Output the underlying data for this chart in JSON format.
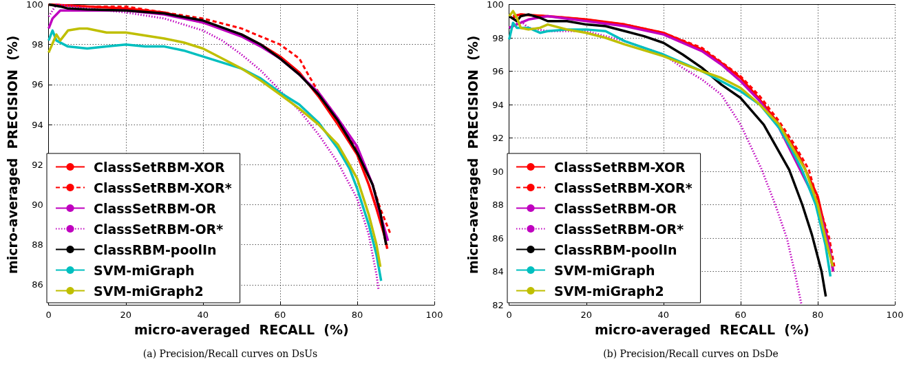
{
  "chart_data": [
    {
      "type": "line",
      "xlabel": "micro-averaged  RECALL  (%)",
      "ylabel": "micro-averaged  PRECISION  (%)",
      "annotations": [
        "(a) Precision/Recall curves on DsUs"
      ],
      "xlim": [
        0,
        100
      ],
      "xticks": [
        0,
        20,
        40,
        60,
        80,
        100
      ],
      "ylim": [
        85,
        100
      ],
      "yticks": [
        86,
        88,
        90,
        92,
        94,
        96,
        98,
        100
      ],
      "grid": true,
      "legend": "bottom left",
      "marker": "none",
      "line_style": "solid",
      "series": [
        {
          "name": "ClassSetRBM-XOR",
          "color": "#ff0000",
          "x": [
            0,
            10,
            20,
            30,
            40,
            50,
            55,
            60,
            65,
            70,
            75,
            80,
            83,
            85,
            87,
            87.8
          ],
          "values": [
            100,
            99.9,
            99.8,
            99.6,
            99.1,
            98.5,
            98.0,
            97.4,
            96.6,
            95.4,
            94.0,
            92.5,
            91.0,
            89.8,
            88.5,
            87.8
          ]
        },
        {
          "name": "ClassSetRBM-XOR*",
          "color": "#ff0000",
          "line_style": "dashed",
          "x": [
            0,
            10,
            20,
            30,
            40,
            50,
            55,
            60,
            65,
            67,
            70,
            75,
            80,
            84,
            86,
            88.5
          ],
          "values": [
            100,
            99.9,
            99.9,
            99.6,
            99.3,
            98.8,
            98.4,
            98.0,
            97.3,
            96.6,
            95.6,
            94.3,
            92.8,
            91.0,
            89.8,
            88.6
          ]
        },
        {
          "name": "ClassSetRBM-OR",
          "color": "#bf00bf",
          "x": [
            0,
            1,
            3,
            10,
            20,
            30,
            40,
            50,
            55,
            60,
            65,
            70,
            75,
            80,
            84,
            86,
            88
          ],
          "values": [
            98.8,
            99.3,
            99.7,
            99.7,
            99.7,
            99.5,
            99.1,
            98.4,
            97.9,
            97.3,
            96.5,
            95.6,
            94.3,
            92.9,
            91.0,
            89.5,
            88.2
          ]
        },
        {
          "name": "ClassSetRBM-OR*",
          "color": "#bf00bf",
          "line_style": "dotted",
          "x": [
            0,
            2,
            10,
            20,
            30,
            35,
            40,
            45,
            50,
            55,
            60,
            65,
            70,
            75,
            80,
            83,
            85,
            85.5
          ],
          "values": [
            99.4,
            100,
            99.8,
            99.6,
            99.3,
            99.0,
            98.7,
            98.2,
            97.5,
            96.7,
            95.7,
            94.7,
            93.5,
            92.1,
            90.3,
            88.5,
            86.5,
            85.8
          ]
        },
        {
          "name": "ClassRBM-poolIn",
          "color": "#000000",
          "x": [
            0,
            3,
            5,
            10,
            20,
            30,
            40,
            50,
            55,
            60,
            65,
            70,
            75,
            80,
            84,
            86,
            87.5
          ],
          "values": [
            100,
            99.9,
            99.8,
            99.75,
            99.7,
            99.55,
            99.2,
            98.5,
            98.0,
            97.3,
            96.5,
            95.5,
            94.2,
            92.6,
            91.0,
            89.6,
            88.0
          ]
        },
        {
          "name": "SVM-miGraph",
          "color": "#00bfbf",
          "x": [
            0,
            1,
            2,
            5,
            10,
            15,
            20,
            25,
            30,
            35,
            40,
            45,
            50,
            55,
            60,
            65,
            70,
            75,
            78,
            80,
            83,
            85,
            86.2
          ],
          "values": [
            98.2,
            98.7,
            98.2,
            97.9,
            97.8,
            97.9,
            98.0,
            97.9,
            97.9,
            97.7,
            97.4,
            97.1,
            96.8,
            96.3,
            95.6,
            95.0,
            94.1,
            92.8,
            91.8,
            90.8,
            89.0,
            87.5,
            86.2
          ]
        },
        {
          "name": "SVM-miGraph2",
          "color": "#bfbf00",
          "x": [
            0,
            2,
            3,
            5,
            8,
            10,
            15,
            20,
            30,
            35,
            40,
            45,
            50,
            55,
            60,
            65,
            70,
            75,
            78,
            80,
            83,
            85,
            86
          ],
          "values": [
            97.6,
            98.5,
            98.2,
            98.7,
            98.8,
            98.8,
            98.6,
            98.6,
            98.3,
            98.1,
            97.8,
            97.3,
            96.8,
            96.2,
            95.5,
            94.8,
            94.0,
            93.0,
            92.0,
            91.3,
            89.5,
            88.0,
            86.9
          ]
        }
      ]
    },
    {
      "type": "line",
      "xlabel": "micro-averaged  RECALL  (%)",
      "ylabel": "micro-averaged  PRECISION  (%)",
      "annotations": [
        "(b) Precision/Recall curves on DsDe"
      ],
      "xlim": [
        0,
        100
      ],
      "xticks": [
        0,
        20,
        40,
        60,
        80,
        100
      ],
      "ylim": [
        82,
        100
      ],
      "yticks": [
        82,
        84,
        86,
        88,
        90,
        92,
        94,
        96,
        98,
        100
      ],
      "grid": true,
      "legend": "bottom left",
      "marker": "none",
      "line_style": "solid",
      "series": [
        {
          "name": "ClassSetRBM-XOR",
          "color": "#ff0000",
          "x": [
            1,
            3,
            10,
            20,
            30,
            40,
            50,
            55,
            60,
            65,
            70,
            75,
            80,
            83,
            84
          ],
          "values": [
            99.3,
            99.4,
            99.3,
            99.1,
            98.8,
            98.3,
            97.3,
            96.5,
            95.6,
            94.3,
            92.8,
            91.0,
            88.5,
            85.5,
            84.0
          ]
        },
        {
          "name": "ClassSetRBM-XOR*",
          "color": "#ff0000",
          "line_style": "dashed",
          "x": [
            1,
            3,
            10,
            20,
            30,
            40,
            50,
            60,
            65,
            70,
            74,
            77.7,
            80.3,
            83,
            84.3
          ],
          "values": [
            99.2,
            99.4,
            99.3,
            99.1,
            98.8,
            98.3,
            97.4,
            95.7,
            94.5,
            93.0,
            91.6,
            90.1,
            88.0,
            86.0,
            84.3
          ]
        },
        {
          "name": "ClassSetRBM-OR",
          "color": "#bf00bf",
          "x": [
            0,
            5,
            10,
            20,
            30,
            40,
            50,
            55,
            60,
            65,
            70,
            75,
            80,
            83,
            84
          ],
          "values": [
            98.6,
            99.1,
            99.3,
            99.0,
            98.7,
            98.2,
            97.2,
            96.4,
            95.4,
            94.2,
            92.6,
            90.3,
            88.0,
            85.5,
            84.0
          ]
        },
        {
          "name": "ClassSetRBM-OR*",
          "color": "#bf00bf",
          "line_style": "dotted",
          "x": [
            0,
            3,
            5,
            10,
            20,
            30,
            40,
            45,
            50,
            55,
            60,
            65.5,
            69,
            72,
            74,
            75.8
          ],
          "values": [
            98.6,
            99.0,
            98.6,
            98.4,
            98.4,
            97.8,
            97.0,
            96.2,
            95.5,
            94.6,
            92.8,
            90.1,
            88.0,
            86.0,
            84.0,
            82.0
          ]
        },
        {
          "name": "ClassRBM-poolIn",
          "color": "#000000",
          "x": [
            0,
            2,
            3,
            5,
            8,
            10,
            15,
            20,
            25,
            30,
            35,
            40,
            45,
            50,
            55,
            60,
            66,
            72.6,
            76,
            78.5,
            81,
            82.1
          ],
          "values": [
            99.3,
            99.0,
            99.3,
            99.4,
            99.2,
            99.0,
            99.0,
            98.8,
            98.7,
            98.4,
            98.1,
            97.7,
            97.0,
            96.2,
            95.2,
            94.4,
            92.8,
            90.1,
            88.0,
            86.2,
            84.0,
            82.5
          ]
        },
        {
          "name": "SVM-miGraph",
          "color": "#00bfbf",
          "x": [
            0,
            1,
            2,
            5,
            8,
            10,
            15,
            20,
            25,
            30,
            40,
            50,
            55,
            60,
            65,
            70,
            73,
            75.9,
            79.5,
            82,
            83.3
          ],
          "values": [
            97.9,
            98.9,
            98.6,
            98.6,
            98.3,
            98.4,
            98.5,
            98.5,
            98.4,
            97.8,
            97.0,
            96.0,
            95.4,
            94.8,
            94.0,
            92.6,
            91.4,
            90.1,
            88.0,
            85.6,
            83.7
          ]
        },
        {
          "name": "SVM-miGraph2",
          "color": "#bfbf00",
          "x": [
            0,
            1,
            2,
            3,
            5,
            8,
            10,
            15,
            20,
            25,
            30,
            40,
            50,
            55,
            60,
            65,
            70,
            73,
            76.8,
            80,
            82,
            83.9
          ],
          "values": [
            99.3,
            99.6,
            99.2,
            98.6,
            98.5,
            98.6,
            98.8,
            98.5,
            98.3,
            98.0,
            97.6,
            96.9,
            96.0,
            95.6,
            95.0,
            94.0,
            92.8,
            91.6,
            90.1,
            88.0,
            86.0,
            84.3
          ]
        }
      ]
    }
  ]
}
